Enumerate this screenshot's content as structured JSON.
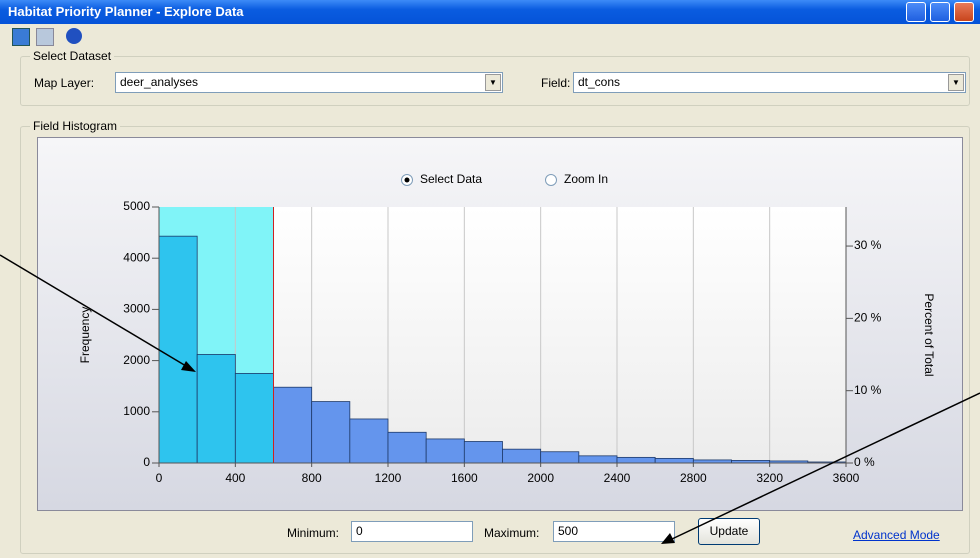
{
  "window": {
    "title": "Habitat Priority Planner - Explore Data"
  },
  "select_dataset": {
    "title": "Select Dataset",
    "map_layer_label": "Map Layer:",
    "map_layer_value": "deer_analyses",
    "field_label": "Field:",
    "field_value": "dt_cons"
  },
  "field_histogram": {
    "title": "Field Histogram",
    "radio_select": "Select Data",
    "radio_zoom": "Zoom In",
    "minimum_label": "Minimum:",
    "minimum_value": "0",
    "maximum_label": "Maximum:",
    "maximum_value": "500",
    "update_button": "Update",
    "advanced_link": "Advanced Mode"
  },
  "chart_data": {
    "type": "histogram",
    "ylabel": "Frequency",
    "y2label": "Percent of Total",
    "bins": [
      0,
      200,
      400,
      600,
      800,
      1000,
      1200,
      1400,
      1600,
      1800,
      2000,
      2200,
      2400,
      2600,
      2800,
      3000,
      3200,
      3400,
      3600
    ],
    "counts": [
      4430,
      2120,
      1750,
      1480,
      1200,
      860,
      600,
      470,
      420,
      270,
      220,
      140,
      110,
      90,
      60,
      50,
      40,
      20
    ],
    "xlim": [
      0,
      3600
    ],
    "xticks": [
      0,
      400,
      800,
      1200,
      1600,
      2000,
      2400,
      2800,
      3200,
      3600
    ],
    "ylim": [
      0,
      5000
    ],
    "yticks": [
      0,
      1000,
      2000,
      3000,
      4000,
      5000
    ],
    "y2lim": [
      0,
      35.4
    ],
    "y2ticks": [
      {
        "value": 0,
        "label": "0 %"
      },
      {
        "value": 10,
        "label": "10 %"
      },
      {
        "value": 20,
        "label": "20 %"
      },
      {
        "value": 30,
        "label": "30 %"
      }
    ],
    "color": "#6495ed",
    "selected_color": "#2ec4ee",
    "selection": [
      0,
      600
    ],
    "xgrid": true
  }
}
